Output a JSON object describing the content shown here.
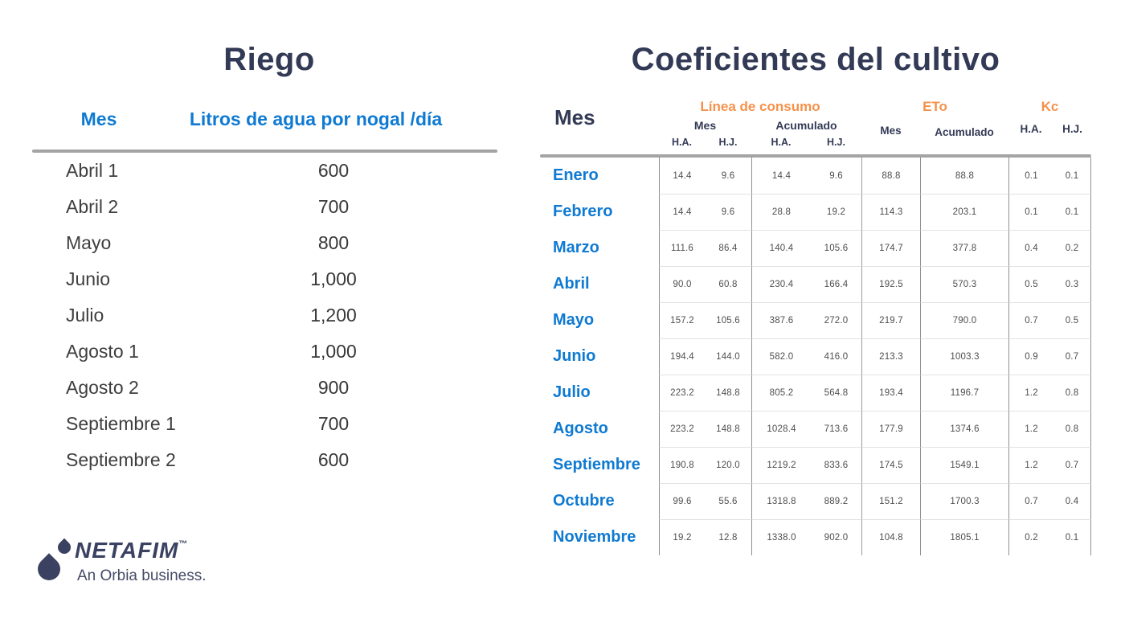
{
  "colors": {
    "navy": "#333a56",
    "blue": "#0f7ad2",
    "orange": "#f5914a",
    "header_rule_gray": "#a4a4a4",
    "divider_gray": "#909090",
    "row_separator": "#e2e2e2"
  },
  "riego": {
    "title": "Riego",
    "columns": [
      "Mes",
      "Litros de agua por nogal /día"
    ],
    "rows": [
      [
        "Abril 1",
        "600"
      ],
      [
        "Abril 2",
        "700"
      ],
      [
        "Mayo",
        "800"
      ],
      [
        "Junio",
        "1,000"
      ],
      [
        "Julio",
        "1,200"
      ],
      [
        "Agosto 1",
        "1,000"
      ],
      [
        "Agosto 2",
        "900"
      ],
      [
        "Septiembre 1",
        "700"
      ],
      [
        "Septiembre 2",
        "600"
      ]
    ]
  },
  "coeficientes": {
    "title": "Coeficientes del cultivo",
    "mes_header": "Mes",
    "groups": [
      {
        "label": "Línea de consumo",
        "subgroups": [
          {
            "label": "Mes",
            "cols": [
              "H.A.",
              "H.J."
            ]
          },
          {
            "label": "Acumulado",
            "cols": [
              "H.A.",
              "H.J."
            ]
          }
        ]
      },
      {
        "label": "ETo",
        "cols": [
          "Mes",
          "Acumulado"
        ]
      },
      {
        "label": "Kc",
        "cols": [
          "H.A.",
          "H.J."
        ]
      }
    ],
    "rows": [
      {
        "mes": "Enero",
        "values": [
          "14.4",
          "9.6",
          "14.4",
          "9.6",
          "88.8",
          "88.8",
          "0.1",
          "0.1"
        ]
      },
      {
        "mes": "Febrero",
        "values": [
          "14.4",
          "9.6",
          "28.8",
          "19.2",
          "114.3",
          "203.1",
          "0.1",
          "0.1"
        ]
      },
      {
        "mes": "Marzo",
        "values": [
          "111.6",
          "86.4",
          "140.4",
          "105.6",
          "174.7",
          "377.8",
          "0.4",
          "0.2"
        ]
      },
      {
        "mes": "Abril",
        "values": [
          "90.0",
          "60.8",
          "230.4",
          "166.4",
          "192.5",
          "570.3",
          "0.5",
          "0.3"
        ]
      },
      {
        "mes": "Mayo",
        "values": [
          "157.2",
          "105.6",
          "387.6",
          "272.0",
          "219.7",
          "790.0",
          "0.7",
          "0.5"
        ]
      },
      {
        "mes": "Junio",
        "values": [
          "194.4",
          "144.0",
          "582.0",
          "416.0",
          "213.3",
          "1003.3",
          "0.9",
          "0.7"
        ]
      },
      {
        "mes": "Julio",
        "values": [
          "223.2",
          "148.8",
          "805.2",
          "564.8",
          "193.4",
          "1196.7",
          "1.2",
          "0.8"
        ]
      },
      {
        "mes": "Agosto",
        "values": [
          "223.2",
          "148.8",
          "1028.4",
          "713.6",
          "177.9",
          "1374.6",
          "1.2",
          "0.8"
        ]
      },
      {
        "mes": "Septiembre",
        "values": [
          "190.8",
          "120.0",
          "1219.2",
          "833.6",
          "174.5",
          "1549.1",
          "1.2",
          "0.7"
        ]
      },
      {
        "mes": "Octubre",
        "values": [
          "99.6",
          "55.6",
          "1318.8",
          "889.2",
          "151.2",
          "1700.3",
          "0.7",
          "0.4"
        ]
      },
      {
        "mes": "Noviembre",
        "values": [
          "19.2",
          "12.8",
          "1338.0",
          "902.0",
          "104.8",
          "1805.1",
          "0.2",
          "0.1"
        ]
      }
    ]
  },
  "logo": {
    "brand": "NETAFIM",
    "tm": "™",
    "tagline": "An Orbia business."
  }
}
